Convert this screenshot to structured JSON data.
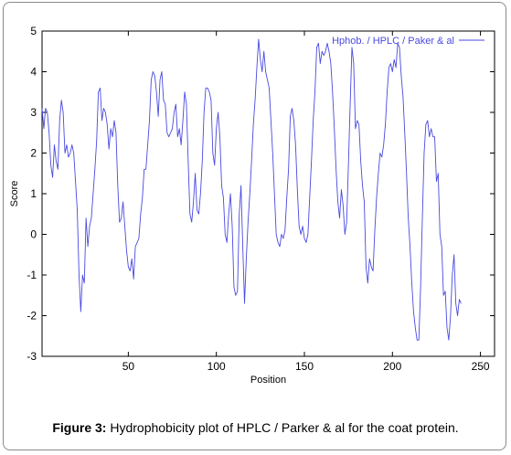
{
  "chart_data": {
    "type": "line",
    "xlabel": "Position",
    "ylabel": "Score",
    "xlim": [
      1,
      258
    ],
    "ylim": [
      -3,
      5
    ],
    "xticks": [
      50,
      100,
      150,
      200,
      250
    ],
    "yticks": [
      -3,
      -2,
      -1,
      0,
      1,
      2,
      3,
      4,
      5
    ],
    "legend_position": "top-right",
    "series": [
      {
        "name": "Hphob. / HPLC / Paker & al",
        "color": "#4a4ae0",
        "points": [
          [
            1,
            3.1
          ],
          [
            2,
            2.6
          ],
          [
            3,
            3.1
          ],
          [
            4,
            3.0
          ],
          [
            5,
            2.5
          ],
          [
            6,
            1.7
          ],
          [
            7,
            1.4
          ],
          [
            8,
            2.2
          ],
          [
            9,
            1.8
          ],
          [
            10,
            1.6
          ],
          [
            11,
            2.8
          ],
          [
            12,
            3.3
          ],
          [
            13,
            3.0
          ],
          [
            14,
            2.0
          ],
          [
            15,
            2.2
          ],
          [
            16,
            1.9
          ],
          [
            17,
            2.0
          ],
          [
            18,
            2.2
          ],
          [
            19,
            2.0
          ],
          [
            20,
            1.3
          ],
          [
            21,
            0.6
          ],
          [
            22,
            -1.0
          ],
          [
            23,
            -1.9
          ],
          [
            24,
            -1.0
          ],
          [
            25,
            -1.2
          ],
          [
            26,
            0.4
          ],
          [
            27,
            -0.3
          ],
          [
            28,
            0.2
          ],
          [
            29,
            0.4
          ],
          [
            30,
            1.0
          ],
          [
            31,
            1.6
          ],
          [
            32,
            2.3
          ],
          [
            33,
            3.5
          ],
          [
            34,
            3.6
          ],
          [
            35,
            2.8
          ],
          [
            36,
            3.1
          ],
          [
            37,
            3.0
          ],
          [
            38,
            2.7
          ],
          [
            39,
            2.1
          ],
          [
            40,
            2.6
          ],
          [
            41,
            2.4
          ],
          [
            42,
            2.8
          ],
          [
            43,
            2.5
          ],
          [
            44,
            1.2
          ],
          [
            45,
            0.3
          ],
          [
            46,
            0.4
          ],
          [
            47,
            0.8
          ],
          [
            48,
            0.2
          ],
          [
            49,
            -0.4
          ],
          [
            50,
            -0.8
          ],
          [
            51,
            -0.9
          ],
          [
            52,
            -0.6
          ],
          [
            53,
            -1.1
          ],
          [
            54,
            -0.3
          ],
          [
            55,
            -0.2
          ],
          [
            56,
            -0.1
          ],
          [
            57,
            0.5
          ],
          [
            58,
            0.9
          ],
          [
            59,
            1.6
          ],
          [
            60,
            1.6
          ],
          [
            61,
            2.2
          ],
          [
            62,
            2.8
          ],
          [
            63,
            3.8
          ],
          [
            64,
            4.0
          ],
          [
            65,
            3.9
          ],
          [
            66,
            3.5
          ],
          [
            67,
            2.9
          ],
          [
            68,
            3.8
          ],
          [
            69,
            4.0
          ],
          [
            70,
            3.3
          ],
          [
            71,
            3.2
          ],
          [
            72,
            2.5
          ],
          [
            73,
            2.4
          ],
          [
            74,
            2.5
          ],
          [
            75,
            2.6
          ],
          [
            76,
            3.0
          ],
          [
            77,
            3.2
          ],
          [
            78,
            2.4
          ],
          [
            79,
            2.6
          ],
          [
            80,
            2.2
          ],
          [
            81,
            2.8
          ],
          [
            82,
            3.5
          ],
          [
            83,
            3.2
          ],
          [
            84,
            1.8
          ],
          [
            85,
            0.5
          ],
          [
            86,
            0.3
          ],
          [
            87,
            0.8
          ],
          [
            88,
            1.5
          ],
          [
            89,
            0.6
          ],
          [
            90,
            0.5
          ],
          [
            91,
            1.0
          ],
          [
            92,
            1.8
          ],
          [
            93,
            3.0
          ],
          [
            94,
            3.6
          ],
          [
            95,
            3.6
          ],
          [
            96,
            3.5
          ],
          [
            97,
            3.3
          ],
          [
            98,
            2.0
          ],
          [
            99,
            1.7
          ],
          [
            100,
            2.6
          ],
          [
            101,
            3.0
          ],
          [
            102,
            2.4
          ],
          [
            103,
            1.2
          ],
          [
            104,
            0.9
          ],
          [
            105,
            0.0
          ],
          [
            106,
            -0.2
          ],
          [
            107,
            0.5
          ],
          [
            108,
            1.0
          ],
          [
            109,
            0.2
          ],
          [
            110,
            -1.3
          ],
          [
            111,
            -1.5
          ],
          [
            112,
            -1.4
          ],
          [
            113,
            0.5
          ],
          [
            114,
            1.2
          ],
          [
            115,
            -0.3
          ],
          [
            116,
            -1.7
          ],
          [
            117,
            -0.6
          ],
          [
            118,
            0.3
          ],
          [
            119,
            1.0
          ],
          [
            120,
            1.8
          ],
          [
            121,
            2.7
          ],
          [
            122,
            3.3
          ],
          [
            123,
            4.1
          ],
          [
            124,
            4.8
          ],
          [
            125,
            4.3
          ],
          [
            126,
            4.0
          ],
          [
            127,
            4.5
          ],
          [
            128,
            4.0
          ],
          [
            129,
            3.8
          ],
          [
            130,
            3.6
          ],
          [
            131,
            2.8
          ],
          [
            132,
            2.0
          ],
          [
            133,
            1.0
          ],
          [
            134,
            0.0
          ],
          [
            135,
            -0.2
          ],
          [
            136,
            -0.3
          ],
          [
            137,
            0.0
          ],
          [
            138,
            -0.1
          ],
          [
            139,
            0.1
          ],
          [
            140,
            0.9
          ],
          [
            141,
            1.6
          ],
          [
            142,
            2.9
          ],
          [
            143,
            3.1
          ],
          [
            144,
            2.8
          ],
          [
            145,
            2.2
          ],
          [
            146,
            1.1
          ],
          [
            147,
            0.2
          ],
          [
            148,
            0.0
          ],
          [
            149,
            0.2
          ],
          [
            150,
            -0.1
          ],
          [
            151,
            -0.2
          ],
          [
            152,
            0.0
          ],
          [
            153,
            0.9
          ],
          [
            154,
            1.8
          ],
          [
            155,
            2.8
          ],
          [
            156,
            3.5
          ],
          [
            157,
            4.6
          ],
          [
            158,
            4.7
          ],
          [
            159,
            4.2
          ],
          [
            160,
            4.5
          ],
          [
            161,
            4.4
          ],
          [
            162,
            4.5
          ],
          [
            163,
            4.7
          ],
          [
            164,
            4.5
          ],
          [
            165,
            4.2
          ],
          [
            166,
            3.5
          ],
          [
            167,
            2.6
          ],
          [
            168,
            1.6
          ],
          [
            169,
            0.8
          ],
          [
            170,
            0.4
          ],
          [
            171,
            1.1
          ],
          [
            172,
            0.7
          ],
          [
            173,
            0.0
          ],
          [
            174,
            0.3
          ],
          [
            175,
            1.7
          ],
          [
            176,
            3.2
          ],
          [
            177,
            4.6
          ],
          [
            178,
            4.2
          ],
          [
            179,
            2.6
          ],
          [
            180,
            2.8
          ],
          [
            181,
            2.7
          ],
          [
            182,
            1.8
          ],
          [
            183,
            1.2
          ],
          [
            184,
            0.8
          ],
          [
            185,
            -0.8
          ],
          [
            186,
            -1.2
          ],
          [
            187,
            -0.6
          ],
          [
            188,
            -0.8
          ],
          [
            189,
            -0.9
          ],
          [
            190,
            0.1
          ],
          [
            191,
            0.9
          ],
          [
            192,
            1.5
          ],
          [
            193,
            2.0
          ],
          [
            194,
            1.9
          ],
          [
            195,
            2.2
          ],
          [
            196,
            2.7
          ],
          [
            197,
            3.5
          ],
          [
            198,
            4.1
          ],
          [
            199,
            4.2
          ],
          [
            200,
            4.0
          ],
          [
            201,
            4.3
          ],
          [
            202,
            4.1
          ],
          [
            203,
            4.7
          ],
          [
            204,
            4.6
          ],
          [
            205,
            3.9
          ],
          [
            206,
            3.4
          ],
          [
            207,
            2.5
          ],
          [
            208,
            1.5
          ],
          [
            209,
            0.4
          ],
          [
            210,
            -0.3
          ],
          [
            211,
            -1.2
          ],
          [
            212,
            -1.9
          ],
          [
            213,
            -2.3
          ],
          [
            214,
            -2.6
          ],
          [
            215,
            -2.6
          ],
          [
            216,
            -1.3
          ],
          [
            217,
            0.4
          ],
          [
            218,
            2.0
          ],
          [
            219,
            2.7
          ],
          [
            220,
            2.8
          ],
          [
            221,
            2.4
          ],
          [
            222,
            2.6
          ],
          [
            223,
            2.4
          ],
          [
            224,
            2.4
          ],
          [
            225,
            1.3
          ],
          [
            226,
            1.5
          ],
          [
            227,
            0.0
          ],
          [
            228,
            -0.3
          ],
          [
            229,
            -1.5
          ],
          [
            230,
            -1.4
          ],
          [
            231,
            -2.3
          ],
          [
            232,
            -2.6
          ],
          [
            233,
            -2.0
          ],
          [
            234,
            -1.0
          ],
          [
            235,
            -0.5
          ],
          [
            236,
            -1.7
          ],
          [
            237,
            -2.0
          ],
          [
            238,
            -1.6
          ],
          [
            239,
            -1.7
          ]
        ]
      }
    ]
  },
  "caption": {
    "label": "Figure 3:",
    "text": " Hydrophobicity plot of HPLC / Parker & al for the coat protein."
  }
}
